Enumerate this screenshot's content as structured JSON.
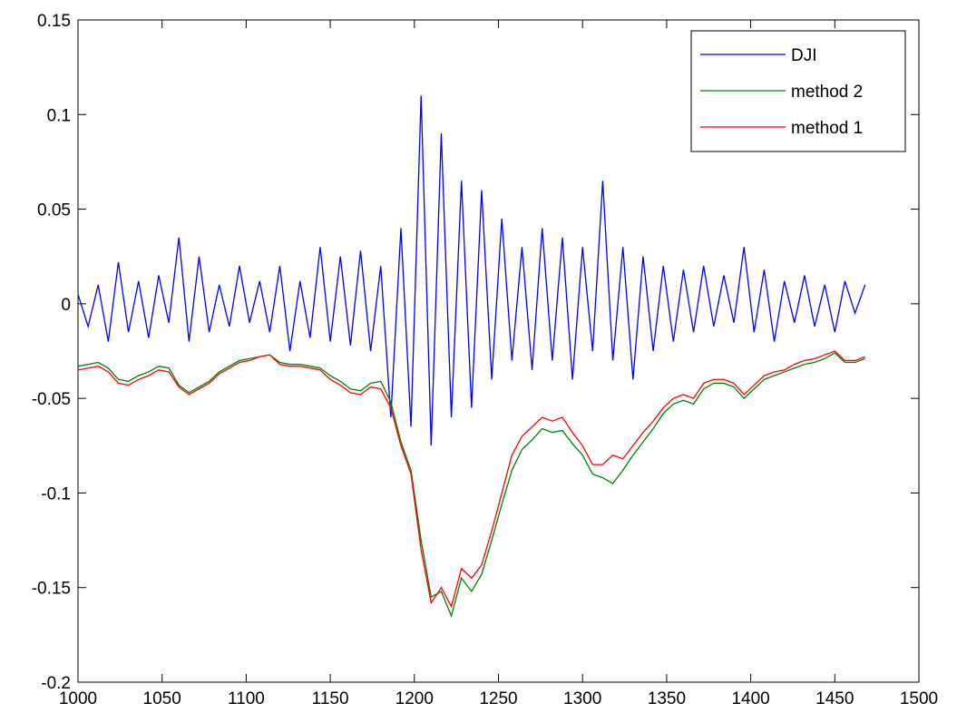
{
  "chart_data": {
    "type": "line",
    "x": [
      1000,
      1006,
      1012,
      1018,
      1024,
      1030,
      1036,
      1042,
      1048,
      1054,
      1060,
      1066,
      1072,
      1078,
      1084,
      1090,
      1096,
      1102,
      1108,
      1114,
      1120,
      1126,
      1132,
      1138,
      1144,
      1150,
      1156,
      1162,
      1168,
      1174,
      1180,
      1186,
      1192,
      1198,
      1204,
      1210,
      1216,
      1222,
      1228,
      1234,
      1240,
      1246,
      1252,
      1258,
      1264,
      1270,
      1276,
      1282,
      1288,
      1294,
      1300,
      1306,
      1312,
      1318,
      1324,
      1330,
      1336,
      1342,
      1348,
      1354,
      1360,
      1366,
      1372,
      1378,
      1384,
      1390,
      1396,
      1402,
      1408,
      1414,
      1420,
      1426,
      1432,
      1438,
      1444,
      1450,
      1456,
      1462,
      1468
    ],
    "series": [
      {
        "name": "DJI",
        "color": "#0000ff",
        "values": [
          0.005,
          -0.012,
          0.01,
          -0.02,
          0.022,
          -0.015,
          0.012,
          -0.018,
          0.015,
          -0.01,
          0.035,
          -0.02,
          0.025,
          -0.015,
          0.01,
          -0.012,
          0.02,
          -0.01,
          0.012,
          -0.015,
          0.02,
          -0.025,
          0.012,
          -0.018,
          0.03,
          -0.02,
          0.025,
          -0.022,
          0.028,
          -0.025,
          0.02,
          -0.06,
          0.04,
          -0.065,
          0.11,
          -0.075,
          0.09,
          -0.06,
          0.065,
          -0.055,
          0.06,
          -0.04,
          0.045,
          -0.03,
          0.03,
          -0.035,
          0.04,
          -0.03,
          0.035,
          -0.04,
          0.03,
          -0.025,
          0.065,
          -0.03,
          0.03,
          -0.04,
          0.025,
          -0.025,
          0.02,
          -0.02,
          0.018,
          -0.015,
          0.02,
          -0.012,
          0.015,
          -0.01,
          0.03,
          -0.015,
          0.018,
          -0.02,
          0.012,
          -0.01,
          0.015,
          -0.012,
          0.01,
          -0.015,
          0.012,
          -0.005,
          0.01
        ]
      },
      {
        "name": "method 2",
        "color": "#008000",
        "values": [
          -0.033,
          -0.032,
          -0.031,
          -0.034,
          -0.04,
          -0.041,
          -0.038,
          -0.036,
          -0.033,
          -0.034,
          -0.043,
          -0.047,
          -0.044,
          -0.041,
          -0.036,
          -0.033,
          -0.03,
          -0.029,
          -0.028,
          -0.027,
          -0.031,
          -0.032,
          -0.032,
          -0.033,
          -0.034,
          -0.038,
          -0.041,
          -0.045,
          -0.046,
          -0.042,
          -0.041,
          -0.052,
          -0.073,
          -0.088,
          -0.125,
          -0.155,
          -0.152,
          -0.165,
          -0.145,
          -0.152,
          -0.143,
          -0.125,
          -0.106,
          -0.088,
          -0.077,
          -0.072,
          -0.066,
          -0.068,
          -0.067,
          -0.074,
          -0.08,
          -0.09,
          -0.092,
          -0.095,
          -0.088,
          -0.08,
          -0.073,
          -0.066,
          -0.058,
          -0.053,
          -0.051,
          -0.053,
          -0.045,
          -0.042,
          -0.042,
          -0.044,
          -0.05,
          -0.045,
          -0.04,
          -0.038,
          -0.036,
          -0.034,
          -0.032,
          -0.031,
          -0.029,
          -0.026,
          -0.031,
          -0.031,
          -0.029
        ]
      },
      {
        "name": "method 1",
        "color": "#ff0000",
        "values": [
          -0.035,
          -0.034,
          -0.033,
          -0.036,
          -0.042,
          -0.043,
          -0.04,
          -0.038,
          -0.035,
          -0.036,
          -0.044,
          -0.048,
          -0.045,
          -0.042,
          -0.037,
          -0.034,
          -0.031,
          -0.03,
          -0.028,
          -0.027,
          -0.032,
          -0.033,
          -0.033,
          -0.034,
          -0.035,
          -0.04,
          -0.043,
          -0.047,
          -0.048,
          -0.044,
          -0.045,
          -0.055,
          -0.075,
          -0.09,
          -0.13,
          -0.158,
          -0.15,
          -0.16,
          -0.14,
          -0.145,
          -0.138,
          -0.12,
          -0.1,
          -0.08,
          -0.07,
          -0.065,
          -0.06,
          -0.062,
          -0.06,
          -0.068,
          -0.075,
          -0.085,
          -0.085,
          -0.08,
          -0.082,
          -0.075,
          -0.068,
          -0.062,
          -0.055,
          -0.05,
          -0.048,
          -0.05,
          -0.042,
          -0.04,
          -0.04,
          -0.042,
          -0.048,
          -0.043,
          -0.038,
          -0.036,
          -0.035,
          -0.032,
          -0.03,
          -0.029,
          -0.027,
          -0.025,
          -0.03,
          -0.03,
          -0.028
        ]
      }
    ],
    "xlim": [
      1000,
      1500
    ],
    "xticks": [
      1000,
      1050,
      1100,
      1150,
      1200,
      1250,
      1300,
      1350,
      1400,
      1450,
      1500
    ],
    "ylim": [
      -0.2,
      0.15
    ],
    "yticks": [
      -0.2,
      -0.15,
      -0.1,
      -0.05,
      0,
      0.05,
      0.1,
      0.15
    ],
    "legend": "upper right",
    "grid": false
  }
}
